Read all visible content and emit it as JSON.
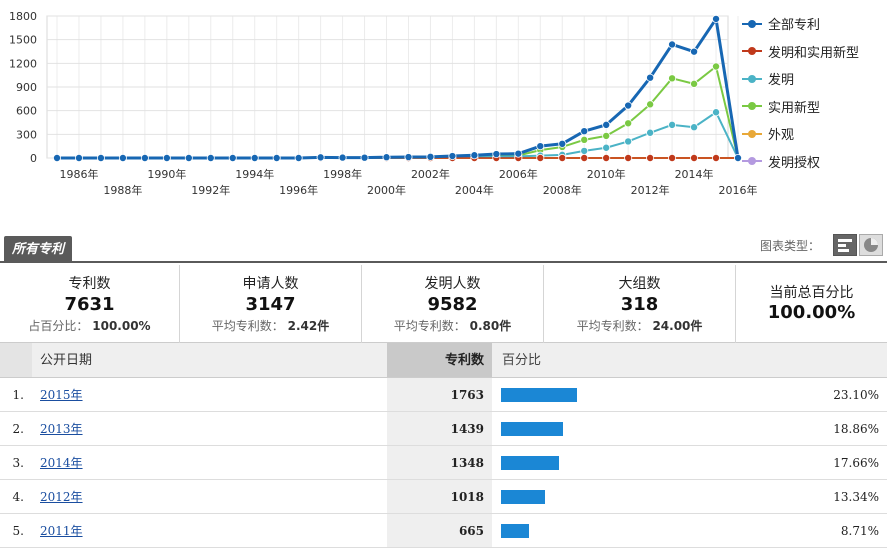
{
  "chart_data": {
    "type": "line",
    "x": [
      1985,
      1986,
      1987,
      1988,
      1989,
      1990,
      1991,
      1992,
      1993,
      1994,
      1995,
      1996,
      1997,
      1998,
      1999,
      2000,
      2001,
      2002,
      2003,
      2004,
      2005,
      2006,
      2007,
      2008,
      2009,
      2010,
      2011,
      2012,
      2013,
      2014,
      2015,
      2016
    ],
    "x_tick_labels": [
      "1986年",
      "1988年",
      "1990年",
      "1992年",
      "1994年",
      "1996年",
      "1998年",
      "2000年",
      "2002年",
      "2004年",
      "2006年",
      "2008年",
      "2010年",
      "2012年",
      "2014年",
      "2016年"
    ],
    "x_tick_years": [
      1986,
      1988,
      1990,
      1992,
      1994,
      1996,
      1998,
      2000,
      2002,
      2004,
      2006,
      2008,
      2010,
      2012,
      2014,
      2016
    ],
    "y_ticks": [
      0,
      300,
      600,
      900,
      1200,
      1500,
      1800
    ],
    "ylim": [
      0,
      1800
    ],
    "grid": true,
    "legend_position": "right",
    "series": [
      {
        "name": "全部专利",
        "color": "#1767b3",
        "width": 3,
        "values": [
          0,
          0,
          0,
          0,
          0,
          0,
          0,
          0,
          0,
          0,
          0,
          0,
          8,
          5,
          4,
          10,
          12,
          15,
          25,
          35,
          50,
          55,
          150,
          180,
          340,
          420,
          665,
          1018,
          1439,
          1348,
          1763,
          0
        ]
      },
      {
        "name": "发明和实用新型",
        "color": "#c0391b",
        "width": 1.5,
        "values": [
          0,
          0,
          0,
          0,
          0,
          0,
          0,
          0,
          0,
          0,
          0,
          0,
          0,
          0,
          0,
          0,
          0,
          0,
          0,
          0,
          0,
          0,
          0,
          0,
          0,
          0,
          0,
          0,
          0,
          0,
          0,
          0
        ]
      },
      {
        "name": "发明",
        "color": "#4bb3c6",
        "width": 2,
        "values": [
          0,
          0,
          0,
          0,
          0,
          0,
          0,
          0,
          0,
          0,
          0,
          0,
          2,
          1,
          1,
          3,
          4,
          5,
          8,
          10,
          15,
          20,
          30,
          40,
          90,
          130,
          210,
          320,
          420,
          390,
          580,
          0
        ]
      },
      {
        "name": "实用新型",
        "color": "#7ac943",
        "width": 2,
        "values": [
          0,
          0,
          0,
          0,
          0,
          0,
          0,
          0,
          0,
          0,
          0,
          0,
          4,
          3,
          2,
          6,
          7,
          8,
          14,
          20,
          30,
          32,
          100,
          140,
          230,
          280,
          440,
          680,
          1010,
          940,
          1160,
          0
        ]
      },
      {
        "name": "外观",
        "color": "#e8a838",
        "width": 2,
        "values": [
          0,
          0,
          0,
          0,
          0,
          0,
          0,
          0,
          0,
          0,
          0,
          0,
          0,
          0,
          0,
          0,
          0,
          0,
          0,
          0,
          0,
          0,
          0,
          0,
          0,
          0,
          0,
          0,
          0,
          0,
          0,
          0
        ]
      },
      {
        "name": "发明授权",
        "color": "#b49ae0",
        "width": 1.5,
        "values": null
      }
    ]
  },
  "tab": {
    "all_patents": "所有专利"
  },
  "chart_type": {
    "label": "图表类型："
  },
  "summary": {
    "patents": {
      "title": "专利数",
      "value": "7631",
      "sub_label": "占百分比：",
      "sub_value": "100.00%"
    },
    "applicants": {
      "title": "申请人数",
      "value": "3147",
      "sub_label": "平均专利数：",
      "sub_value": "2.42件"
    },
    "inventors": {
      "title": "发明人数",
      "value": "9582",
      "sub_label": "平均专利数：",
      "sub_value": "0.80件"
    },
    "groups": {
      "title": "大组数",
      "value": "318",
      "sub_label": "平均专利数：",
      "sub_value": "24.00件"
    },
    "current_pct": {
      "title": "当前总百分比",
      "value": "100.00%"
    }
  },
  "table": {
    "headers": {
      "date": "公开日期",
      "count": "专利数",
      "pct": "百分比"
    },
    "rows": [
      {
        "idx": "1.",
        "date": "2015年",
        "count": "1763",
        "pct": "23.10%",
        "pct_value": 23.1
      },
      {
        "idx": "2.",
        "date": "2013年",
        "count": "1439",
        "pct": "18.86%",
        "pct_value": 18.86
      },
      {
        "idx": "3.",
        "date": "2014年",
        "count": "1348",
        "pct": "17.66%",
        "pct_value": 17.66
      },
      {
        "idx": "4.",
        "date": "2012年",
        "count": "1018",
        "pct": "13.34%",
        "pct_value": 13.34
      },
      {
        "idx": "5.",
        "date": "2011年",
        "count": "665",
        "pct": "8.71%",
        "pct_value": 8.71
      }
    ]
  }
}
